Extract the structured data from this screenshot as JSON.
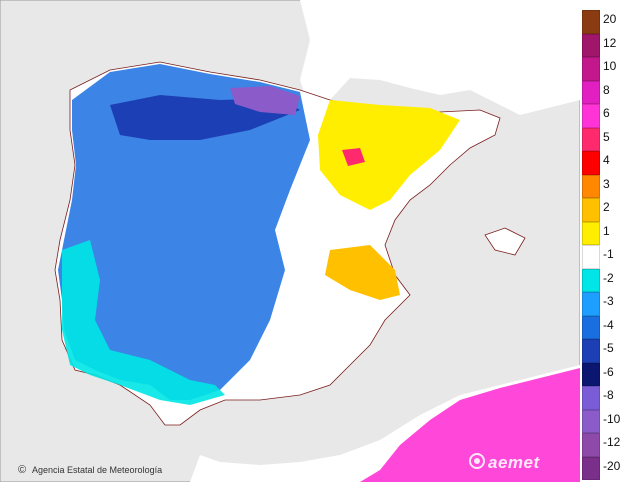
{
  "map": {
    "credit": "Agencia Estatal de Meteorología",
    "credit_symbol": "©",
    "logo_text": "aemet",
    "colors": {
      "sea": "#e8e8e8",
      "land_neutral": "#ffffff",
      "france": "#ffffff"
    }
  },
  "legend": {
    "ticks": [
      "20",
      "12",
      "10",
      "8",
      "6",
      "5",
      "4",
      "3",
      "2",
      "1",
      "-1",
      "-2",
      "-3",
      "-4",
      "-5",
      "-6",
      "-8",
      "-10",
      "-12",
      "-20"
    ],
    "bins": [
      {
        "color": "#8a3b12"
      },
      {
        "color": "#a0166a"
      },
      {
        "color": "#c2188c"
      },
      {
        "color": "#e21fc0"
      },
      {
        "color": "#ff33d6"
      },
      {
        "color": "#ff2a6e"
      },
      {
        "color": "#ff0000"
      },
      {
        "color": "#ff8800"
      },
      {
        "color": "#ffc000"
      },
      {
        "color": "#ffee00"
      },
      {
        "color": "#ffffff"
      },
      {
        "color": "#00e5e5"
      },
      {
        "color": "#1e9fff"
      },
      {
        "color": "#1a6fe0"
      },
      {
        "color": "#1c3fb5"
      },
      {
        "color": "#0a1670"
      },
      {
        "color": "#7a5cd6"
      },
      {
        "color": "#8b5cc9"
      },
      {
        "color": "#8e4aa8"
      },
      {
        "color": "#7a2f8a"
      }
    ]
  }
}
